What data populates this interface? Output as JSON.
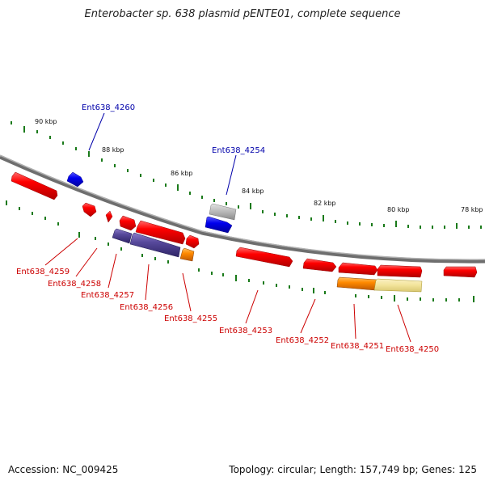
{
  "title": "Enterobacter sp. 638 plasmid pENTE01, complete sequence",
  "accession_text": "Accession: NC_009425",
  "summary_text": "Topology: circular; Length: 157,749 bp; Genes: 125",
  "colors": {
    "backbone": "#808080",
    "tick": "#1a7a1a",
    "cds_forward": "#ff0000",
    "cds_reverse": "#ff0000",
    "highlight_blue": "#0000dd",
    "label_blue": "#0000aa",
    "label_red": "#cc0000",
    "purple": "#5a4a9a",
    "orange": "#ff8800",
    "pale_yellow": "#f2e39a",
    "gray": "#b8b8b8"
  },
  "kbp_labels": [
    "90 kbp",
    "88 kbp",
    "86 kbp",
    "84 kbp",
    "82 kbp",
    "80 kbp",
    "78 kbp"
  ],
  "upper_gene_labels": [
    "Ent638_4260",
    "Ent638_4254"
  ],
  "lower_gene_labels": [
    "Ent638_4259",
    "Ent638_4258",
    "Ent638_4257",
    "Ent638_4256",
    "Ent638_4255",
    "Ent638_4253",
    "Ent638_4252",
    "Ent638_4251",
    "Ent638_4250"
  ]
}
